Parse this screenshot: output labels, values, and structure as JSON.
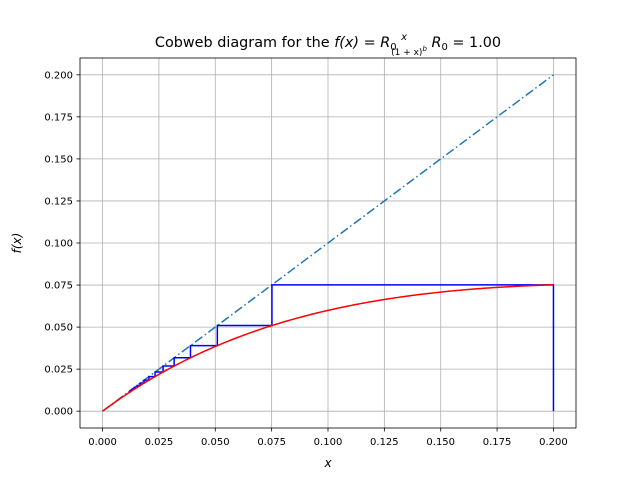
{
  "chart_data": {
    "type": "line",
    "title": {
      "prefix": "Cobweb diagram for the ",
      "fx": "f(x)",
      "eq": " = ",
      "R": "R",
      "sub0": "0",
      "num": "x",
      "den_open": "(1 + x)",
      "den_exp": "b",
      "space": " ",
      "R0_label": "R",
      "R0_sub": "0",
      "R0_eq": " = 1.00"
    },
    "xlabel": "x",
    "ylabel": "f(x)",
    "xlim": [
      -0.01,
      0.21
    ],
    "ylim": [
      -0.01,
      0.21
    ],
    "xticks": [
      0.0,
      0.025,
      0.05,
      0.075,
      0.1,
      0.125,
      0.15,
      0.175,
      0.2
    ],
    "yticks": [
      0.0,
      0.025,
      0.05,
      0.075,
      0.1,
      0.125,
      0.15,
      0.175,
      0.2
    ],
    "grid": true,
    "model": {
      "R0": 1.0,
      "b": 5.37,
      "x_range": [
        0.0,
        0.2
      ]
    },
    "identity": {
      "x": [
        0.0,
        0.2
      ],
      "y": [
        0.0,
        0.2
      ],
      "style": "dashdot",
      "color": "#1f77b4"
    },
    "curve_color": "#ff0000",
    "cobweb": {
      "x0": 0.2,
      "iterations": 14,
      "color": "#0000ff"
    }
  }
}
